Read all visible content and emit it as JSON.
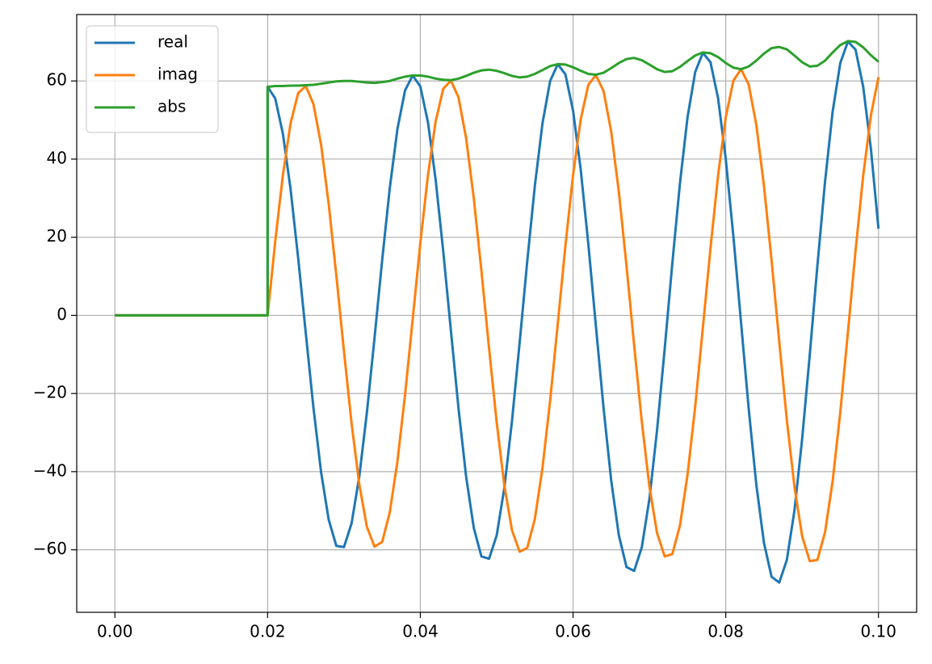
{
  "chart_data": {
    "type": "line",
    "x": [
      0,
      0.02,
      0.02,
      0.021,
      0.022,
      0.023,
      0.024,
      0.025,
      0.026,
      0.027,
      0.028,
      0.029,
      0.03,
      0.031,
      0.032,
      0.033,
      0.034,
      0.035,
      0.036,
      0.037,
      0.038,
      0.039,
      0.04,
      0.041,
      0.042,
      0.043,
      0.044,
      0.045,
      0.046,
      0.047,
      0.048,
      0.049,
      0.05,
      0.051,
      0.052,
      0.053,
      0.054,
      0.055,
      0.056,
      0.057,
      0.058,
      0.059,
      0.06,
      0.061,
      0.062,
      0.063,
      0.064,
      0.065,
      0.066,
      0.067,
      0.068,
      0.069,
      0.07,
      0.071,
      0.072,
      0.073,
      0.074,
      0.075,
      0.076,
      0.077,
      0.078,
      0.079,
      0.08,
      0.081,
      0.082,
      0.083,
      0.084,
      0.085,
      0.086,
      0.087,
      0.088,
      0.089,
      0.09,
      0.091,
      0.092,
      0.093,
      0.094,
      0.095,
      0.096,
      0.097,
      0.098,
      0.099,
      0.1
    ],
    "series": [
      {
        "name": "real",
        "color": "#1f77b4",
        "values": [
          0,
          0,
          58.5,
          55.5,
          46.5,
          32.4,
          14.7,
          -4.6,
          -23.6,
          -40.1,
          -52.3,
          -59.0,
          -59.3,
          -53.2,
          -41.3,
          -24.9,
          -5.8,
          14.1,
          32.6,
          47.7,
          57.6,
          61.4,
          58.6,
          49.4,
          34.8,
          16.4,
          -3.8,
          -23.8,
          -41.3,
          -54.4,
          -61.7,
          -62.3,
          -56.3,
          -44.2,
          -27.1,
          -7.1,
          13.8,
          33.2,
          49.2,
          60.0,
          64.3,
          61.7,
          52.4,
          37.4,
          18.3,
          -2.9,
          -23.8,
          -42.3,
          -56.3,
          -64.4,
          -65.4,
          -59.4,
          -47.0,
          -29.4,
          -8.6,
          13.3,
          33.8,
          50.8,
          62.3,
          67.2,
          64.8,
          55.5,
          40.0,
          20.2,
          -1.8,
          -23.8,
          -43.3,
          -58.2,
          -66.9,
          -68.4,
          -62.6,
          -49.9,
          -31.7,
          -10.1,
          12.7,
          34.2,
          52.2,
          64.6,
          70.1,
          68.0,
          58.5,
          42.8,
          22.2
        ]
      },
      {
        "name": "imag",
        "color": "#ff7f0e",
        "values": [
          0,
          0,
          0,
          19.0,
          35.9,
          49.1,
          56.9,
          58.7,
          54.1,
          43.7,
          28.5,
          10.2,
          -9.2,
          -27.7,
          -43.2,
          -54.1,
          -59.2,
          -58.0,
          -50.4,
          -37.4,
          -20.3,
          -1.0,
          18.5,
          35.9,
          49.6,
          58.0,
          60.1,
          55.8,
          45.3,
          30.0,
          11.4,
          -8.4,
          -27.4,
          -43.5,
          -55.0,
          -60.5,
          -59.5,
          -52.1,
          -39.0,
          -21.8,
          -2.1,
          17.8,
          35.9,
          50.1,
          59.0,
          61.5,
          57.4,
          47.0,
          31.6,
          12.7,
          -7.6,
          -27.1,
          -43.8,
          -55.7,
          -61.7,
          -61.1,
          -53.8,
          -40.7,
          -23.3,
          -3.2,
          17.2,
          35.9,
          50.7,
          60.1,
          63.0,
          59.1,
          48.8,
          33.2,
          14.1,
          -6.6,
          -26.8,
          -43.9,
          -56.5,
          -62.9,
          -62.6,
          -55.5,
          -42.4,
          -24.8,
          -4.3,
          16.6,
          35.8,
          51.1,
          61.0
        ]
      },
      {
        "name": "abs",
        "color": "#2ca02c",
        "values": [
          0,
          0,
          58.5,
          58.7,
          58.7,
          58.8,
          58.8,
          58.9,
          59.0,
          59.3,
          59.6,
          59.9,
          60.0,
          60.0,
          59.8,
          59.6,
          59.5,
          59.7,
          60.0,
          60.6,
          61.1,
          61.4,
          61.4,
          61.1,
          60.6,
          60.3,
          60.2,
          60.6,
          61.3,
          62.1,
          62.7,
          62.9,
          62.6,
          62.0,
          61.3,
          60.9,
          61.1,
          61.8,
          62.8,
          63.8,
          64.3,
          64.2,
          63.5,
          62.6,
          61.8,
          61.6,
          62.1,
          63.3,
          64.6,
          65.6,
          65.9,
          65.3,
          64.2,
          63.0,
          62.3,
          62.5,
          63.6,
          65.1,
          66.5,
          67.3,
          67.1,
          66.1,
          64.6,
          63.4,
          63.0,
          63.7,
          65.2,
          67.0,
          68.4,
          68.7,
          68.1,
          66.5,
          64.8,
          63.7,
          63.9,
          65.2,
          67.3,
          69.2,
          70.2,
          70.0,
          68.6,
          66.6,
          64.9
        ]
      }
    ],
    "xlim": [
      -0.005,
      0.105
    ],
    "xticks": [
      {
        "value": 0,
        "label": "0.00"
      },
      {
        "value": 0.02,
        "label": "0.02"
      },
      {
        "value": 0.04,
        "label": "0.04"
      },
      {
        "value": 0.06,
        "label": "0.06"
      },
      {
        "value": 0.08,
        "label": "0.08"
      },
      {
        "value": 0.1,
        "label": "0.10"
      }
    ],
    "ylim": [
      -76,
      77
    ],
    "yticks": [
      {
        "value": -60,
        "label": "−60"
      },
      {
        "value": -40,
        "label": "−40"
      },
      {
        "value": -20,
        "label": "−20"
      },
      0,
      20,
      40,
      60
    ],
    "grid": true,
    "legend": "upper left"
  }
}
